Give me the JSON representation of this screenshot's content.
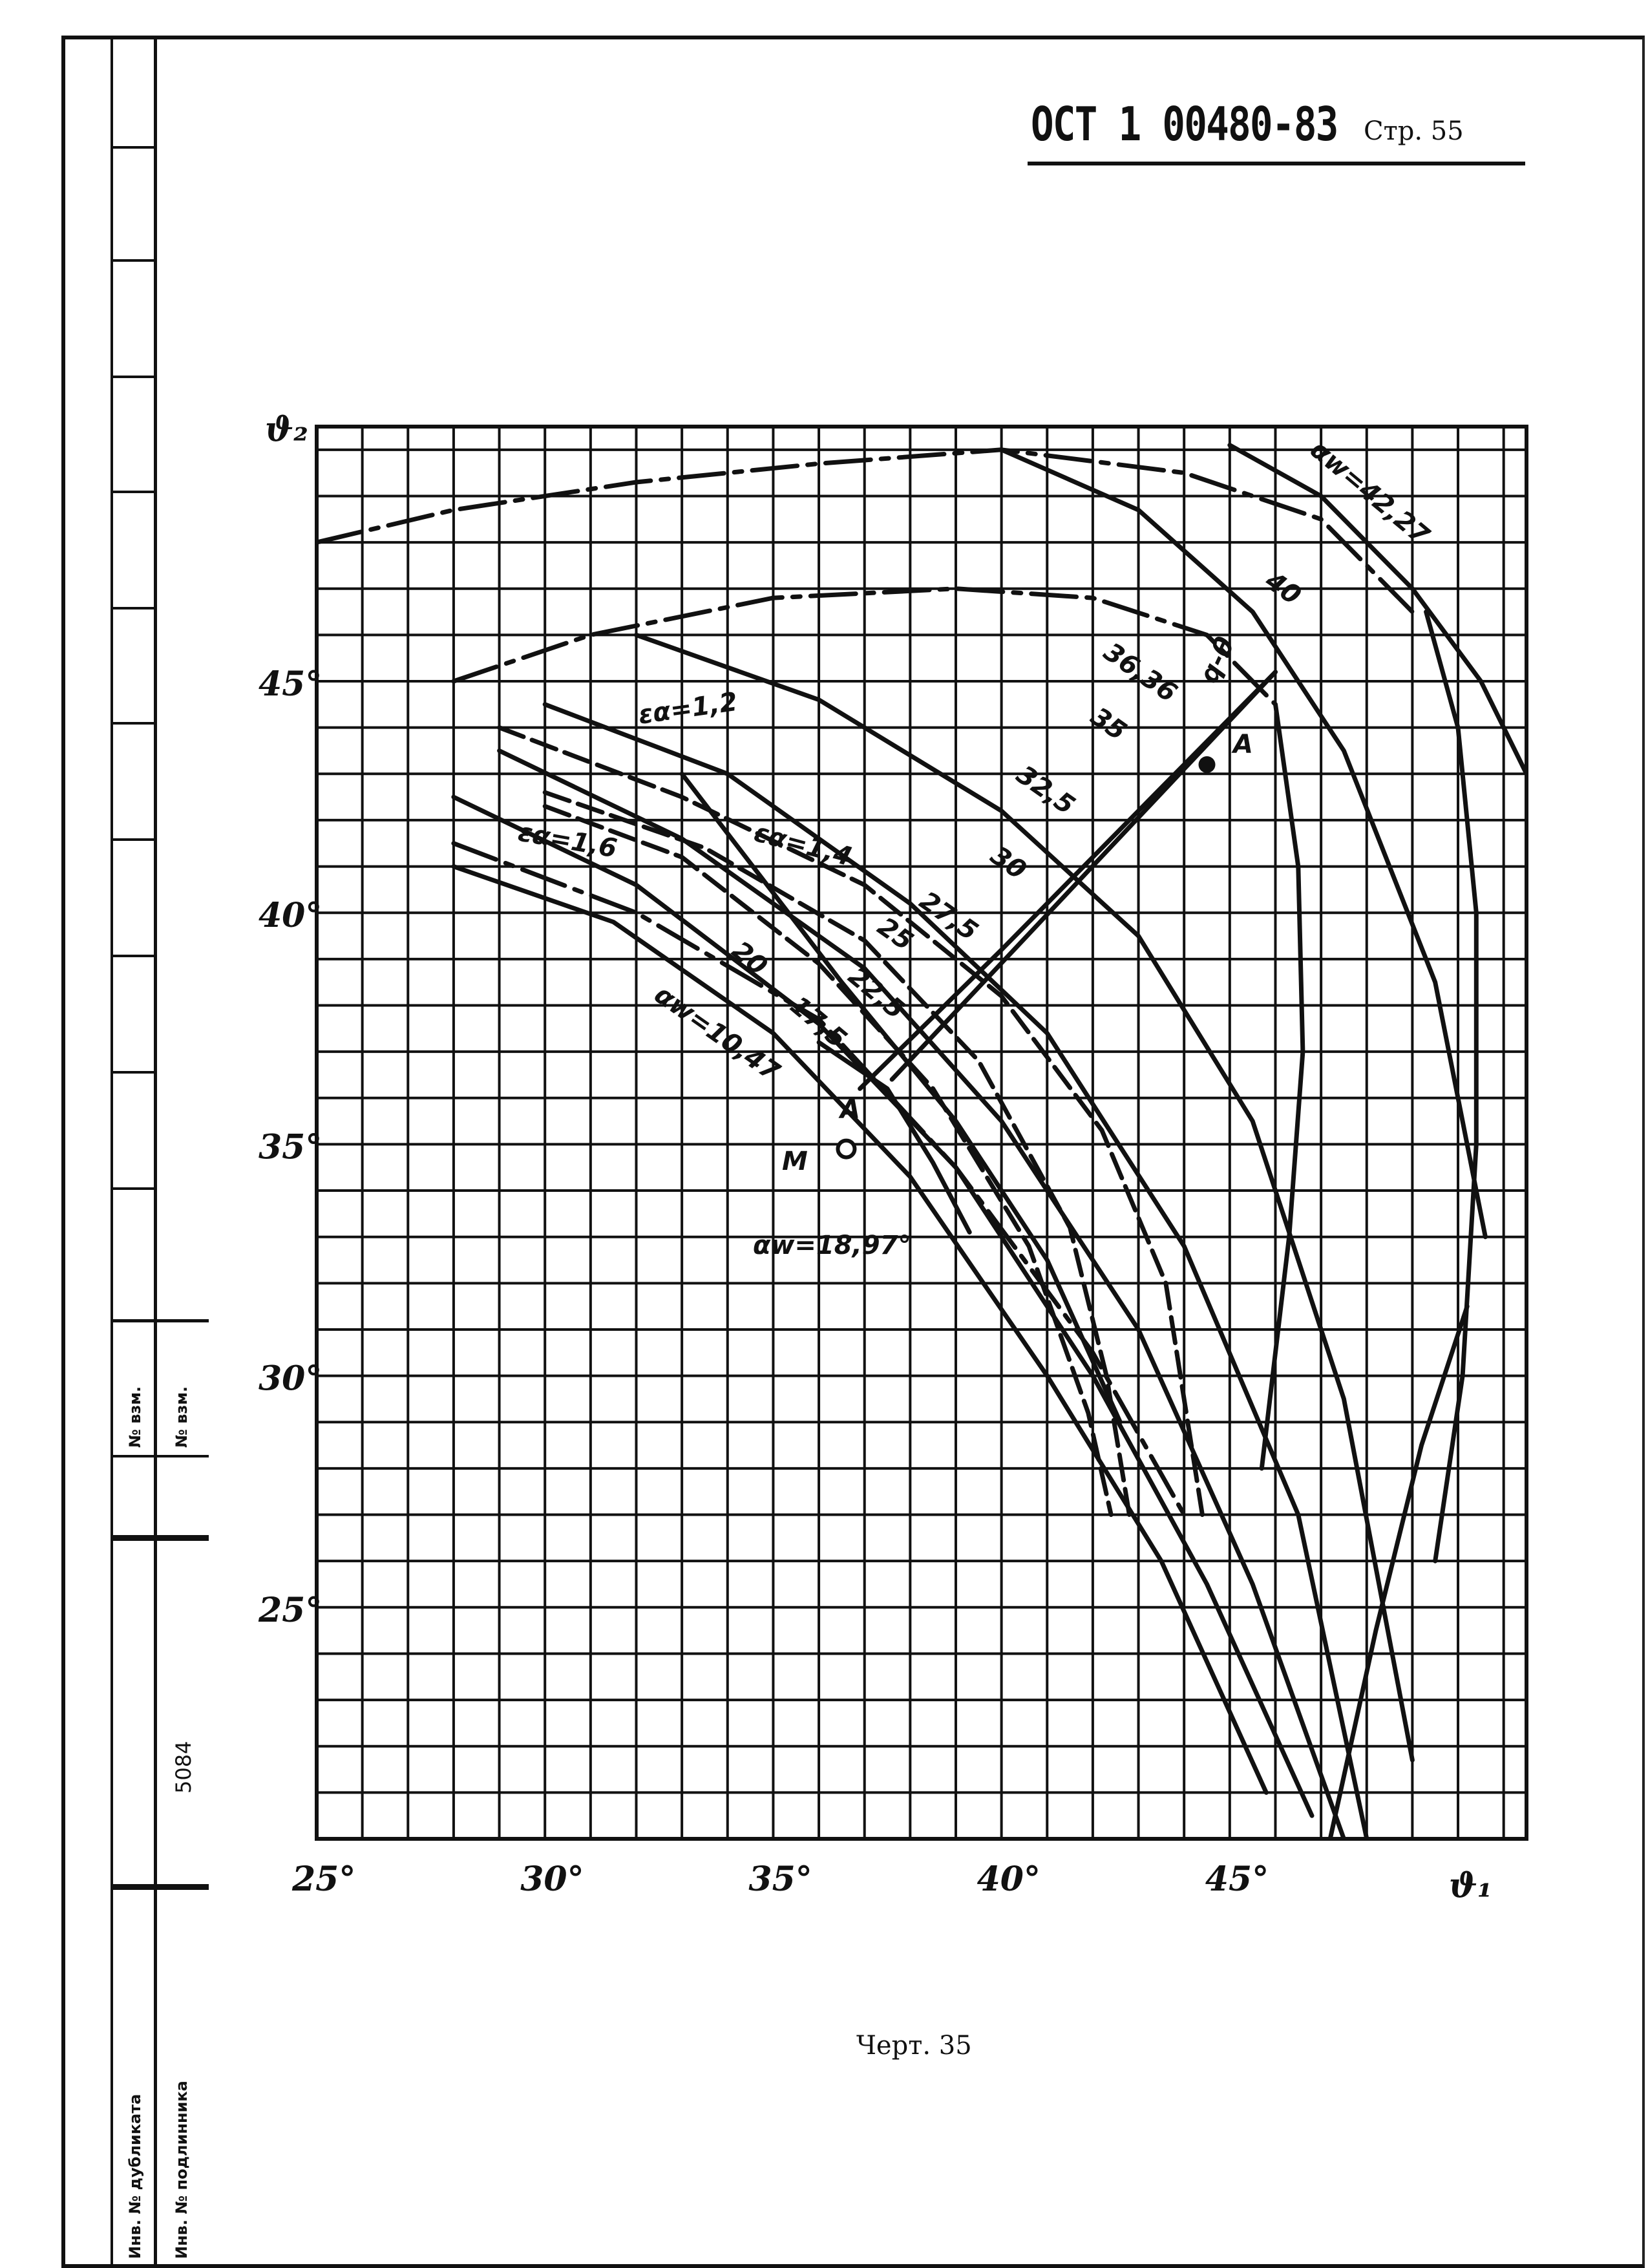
{
  "header": {
    "doc_code": "ОСТ 1 00480-83",
    "page_label": "Стр. 55"
  },
  "side_stamp": {
    "inv_dubl": "Инв. № дубликата",
    "inv_podl": "Инв. № подлинника",
    "vzam_1": "№ взм.",
    "vzam_2": "№ взм.",
    "inv_number": "5084"
  },
  "caption": "Черт. 35",
  "chart_data": {
    "type": "line",
    "title": "",
    "xlabel": "ϑ₁",
    "ylabel": "ϑ₂",
    "xlim": [
      25,
      51.5
    ],
    "ylim": [
      20,
      50.5
    ],
    "grid": true,
    "x_ticks": [
      "25°",
      "30°",
      "35°",
      "40°",
      "45°"
    ],
    "y_ticks": [
      "25°",
      "30°",
      "35°",
      "40°",
      "45°"
    ],
    "annotations": [
      "αw=42,27",
      "αw=10,47",
      "αw=18,97°",
      "εα=1,2",
      "εα=1,4",
      "εα=1,6",
      "q-θ",
      "36,36",
      "40",
      "35",
      "32,5",
      "30",
      "27,5",
      "25",
      "22,5",
      "20",
      "17,5",
      "A",
      "A",
      "M"
    ],
    "series": [
      {
        "style": "dash-dot",
        "x": [
          25,
          28,
          32,
          36,
          40,
          44,
          47,
          49
        ],
        "y": [
          48,
          48.7,
          49.3,
          49.7,
          50,
          49.5,
          48.5,
          46.5
        ]
      },
      {
        "style": "dash-dot",
        "x": [
          28,
          31,
          35,
          39,
          42,
          44.5,
          46
        ],
        "y": [
          45,
          46,
          46.8,
          47,
          46.8,
          46,
          44.5
        ]
      },
      {
        "style": "solid",
        "x": [
          49.3,
          50,
          50.4,
          50.4,
          50.1,
          49.5
        ],
        "y": [
          46.5,
          44,
          40,
          35,
          30,
          26
        ]
      },
      {
        "style": "solid",
        "x": [
          46,
          46.5,
          46.6,
          46.3,
          45.7
        ],
        "y": [
          44.5,
          41,
          37,
          33,
          28
        ]
      },
      {
        "style": "solid",
        "x": [
          45,
          47,
          49,
          50.5,
          51.5
        ],
        "y": [
          50.1,
          49,
          47,
          45,
          43
        ]
      },
      {
        "style": "solid",
        "x": [
          40,
          43,
          45.5,
          47.5,
          49.5,
          50.6
        ],
        "y": [
          50,
          48.7,
          46.5,
          43.5,
          38.5,
          33
        ]
      },
      {
        "style": "solid",
        "x": [
          32,
          36,
          40,
          43,
          45.5,
          47.5,
          49
        ],
        "y": [
          46,
          44.6,
          42.2,
          39.5,
          35.5,
          29.5,
          21.7
        ]
      },
      {
        "style": "solid",
        "x": [
          30,
          34,
          38,
          41,
          44,
          46.5,
          48
        ],
        "y": [
          44.5,
          43,
          40.2,
          37.4,
          32.8,
          27,
          20
        ]
      },
      {
        "style": "solid",
        "x": [
          29,
          33,
          37,
          40,
          43,
          45.5,
          47.5
        ],
        "y": [
          43.5,
          41.6,
          38.8,
          35.5,
          31,
          25.5,
          20
        ]
      },
      {
        "style": "solid",
        "x": [
          28,
          32,
          36,
          39,
          42,
          44.5,
          46.8
        ],
        "y": [
          42.5,
          40.6,
          37.6,
          34.5,
          30,
          25.5,
          20.5
        ]
      },
      {
        "style": "solid",
        "x": [
          28,
          31.5,
          35,
          38,
          41,
          43.5,
          45.8
        ],
        "y": [
          41,
          39.8,
          37.4,
          34.3,
          30,
          26,
          21
        ]
      },
      {
        "style": "dash-dot",
        "x": [
          28,
          32,
          36,
          39,
          42,
          44
        ],
        "y": [
          41.5,
          40,
          37.7,
          34.5,
          30.5,
          27
        ]
      },
      {
        "style": "dashed",
        "x": [
          29,
          33,
          37,
          40,
          42.2,
          43.6,
          44.4
        ],
        "y": [
          44,
          42.5,
          40.6,
          38.2,
          35.3,
          32,
          27
        ]
      },
      {
        "style": "dashed",
        "x": [
          30,
          33.5,
          37,
          39.5,
          41.5,
          42.3,
          42.8
        ],
        "y": [
          42.6,
          41.4,
          39.4,
          36.8,
          33.2,
          30,
          27
        ]
      },
      {
        "style": "dashed",
        "x": [
          30,
          33,
          36,
          38.5,
          40.6,
          41.9,
          42.4
        ],
        "y": [
          42.3,
          41.2,
          38.9,
          36.2,
          32.8,
          29.2,
          27
        ]
      },
      {
        "style": "solid",
        "x": [
          33,
          36.5,
          39,
          41,
          42.6
        ],
        "y": [
          43,
          38.5,
          35.5,
          32.5,
          29
        ]
      },
      {
        "style": "solid",
        "x": [
          36,
          37.5,
          38.5,
          39.3
        ],
        "y": [
          37.2,
          36.2,
          34.6,
          33.1
        ]
      },
      {
        "style": "solid",
        "x": [
          36.9,
          40,
          43,
          46
        ],
        "y": [
          36.2,
          39.2,
          42.2,
          45.2
        ]
      },
      {
        "style": "solid",
        "x": [
          37.6,
          46
        ],
        "y": [
          36.4,
          45.2
        ]
      },
      {
        "style": "solid",
        "x": [
          47.2,
          48.2,
          49.2,
          50.2
        ],
        "y": [
          20,
          24.5,
          28.5,
          31.5
        ]
      }
    ],
    "points": [
      {
        "label": "A",
        "x": 44.5,
        "y": 43.2,
        "marker": "filled"
      },
      {
        "label": "A",
        "x": 36.5,
        "y": 35.2,
        "marker": "none"
      },
      {
        "label": "M",
        "x": 36.6,
        "y": 34.9,
        "marker": "open"
      }
    ]
  }
}
